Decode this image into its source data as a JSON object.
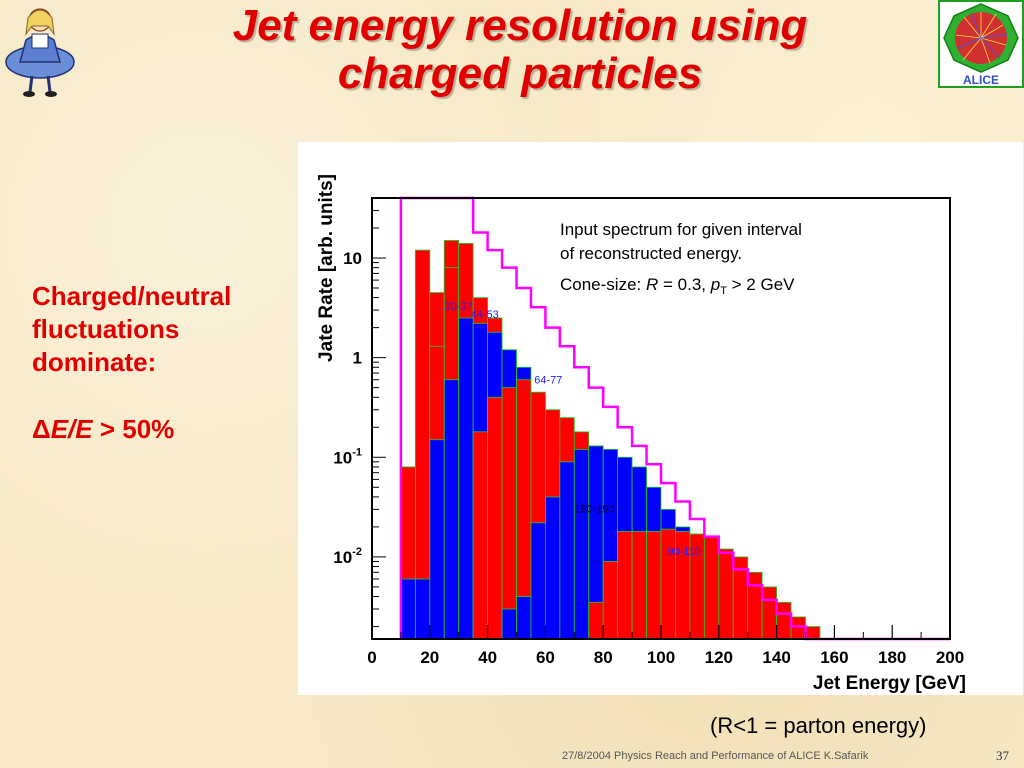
{
  "slide": {
    "title_line1": "Jet energy resolution using",
    "title_line2": "charged particles",
    "left_lines": [
      "Charged/neutral",
      "fluctuations",
      "dominate:"
    ],
    "resolution": {
      "delta": "Δ",
      "e_over_e": "E/E",
      "rest": " > 50%"
    },
    "note": "(R<1 = parton energy)",
    "footer": "27/8/2004 Physics Reach and Performance of ALICE  K.Safarik",
    "page_number": "37",
    "logo_right_text": "ALICE"
  },
  "chart_data": {
    "type": "bar",
    "xlabel": "Jet Energy  [GeV]",
    "ylabel": "Jate Rate  [arb. units]",
    "xlim": [
      0,
      200
    ],
    "ylim": [
      0.0015,
      40
    ],
    "log_y": true,
    "x_ticks": [
      "0",
      "20",
      "40",
      "60",
      "80",
      "100",
      "120",
      "140",
      "160",
      "180",
      "200"
    ],
    "y_ticks": [
      {
        "value": 10,
        "base": "10",
        "exp": ""
      },
      {
        "value": 1,
        "base": "1",
        "exp": ""
      },
      {
        "value": 0.1,
        "base": "10",
        "exp": "-1"
      },
      {
        "value": 0.01,
        "base": "10",
        "exp": "-2"
      }
    ],
    "annotation": {
      "line1": "Input spectrum for given interval",
      "line2": "of reconstructed energy.",
      "line3_prefix": "Cone-size: ",
      "r_symbol": "R",
      "r_value": " = 0.3, ",
      "p_symbol": "p",
      "p_sub": "T",
      "p_value": " > 2 GeV"
    },
    "colors": {
      "red": "#ff0000",
      "blue": "#0000ff",
      "magenta": "#ff00ff",
      "edge": "#22cc22"
    },
    "edges": [
      10,
      15,
      20,
      25,
      30,
      35,
      40,
      45,
      50,
      55,
      60,
      65,
      70,
      75,
      80,
      85,
      90,
      95,
      100,
      105,
      110,
      115,
      120,
      125,
      130,
      135,
      140,
      145,
      150,
      155,
      160,
      165,
      170,
      175,
      180,
      185,
      190,
      195,
      200
    ],
    "series": [
      {
        "name": "",
        "label": "30-37",
        "color": "#ff0000",
        "label_at": [
          30,
          3.0
        ],
        "values": [
          0.08,
          12,
          4.5,
          15,
          8,
          3,
          0.5,
          0.25,
          0.13,
          0.07,
          0.035,
          0.02,
          0.01,
          0.005,
          0.003,
          0.002,
          0.0015,
          0.0015,
          0.0015,
          0.0015,
          0.0015,
          0.0015,
          0.0015,
          0.0015,
          0.0015,
          0.0015,
          0.0015,
          0.0015,
          0.0015,
          0.0015,
          0.0015,
          0.0015,
          0.0015,
          0.0015,
          0.0015,
          0.0015,
          0.0015,
          0.0015
        ]
      },
      {
        "name": "",
        "label": "44-53",
        "color": "#ff0000",
        "label_at": [
          39,
          2.5
        ],
        "values": [
          0.0015,
          0.0015,
          1.3,
          8,
          14,
          4,
          2.5,
          1.1,
          0.55,
          0.35,
          0.2,
          0.12,
          0.07,
          0.04,
          0.025,
          0.015,
          0.009,
          0.005,
          0.003,
          0.002,
          0.0015,
          0.0015,
          0.0015,
          0.0015,
          0.0015,
          0.0015,
          0.0015,
          0.0015,
          0.0015,
          0.0015,
          0.0015,
          0.0015,
          0.0015,
          0.0015,
          0.0015,
          0.0015,
          0.0015,
          0.0015
        ]
      },
      {
        "name": "",
        "label": "",
        "color": "#0000ff",
        "values": [
          0.006,
          0.006,
          0.15,
          0.6,
          2.5,
          2.2,
          1.8,
          1.2,
          0.8,
          0.4,
          0.2,
          0.1,
          0.05,
          0.02,
          0.008,
          0.004,
          0.002,
          0.0015,
          0.0015,
          0.0015,
          0.0015,
          0.0015,
          0.0015,
          0.0015,
          0.0015,
          0.0015,
          0.0015,
          0.0015,
          0.0015,
          0.0015,
          0.0015,
          0.0015,
          0.0015,
          0.0015,
          0.0015,
          0.0015,
          0.0015,
          0.0015
        ]
      },
      {
        "name": "",
        "label": "64-77",
        "color": "#ff0000",
        "label_at": [
          61,
          0.55
        ],
        "values": [
          0.0015,
          0.0015,
          0.0015,
          0.0015,
          0.0015,
          0.18,
          0.4,
          0.5,
          0.6,
          0.45,
          0.3,
          0.25,
          0.18,
          0.1,
          0.06,
          0.03,
          0.015,
          0.008,
          0.004,
          0.002,
          0.0015,
          0.0015,
          0.0015,
          0.0015,
          0.0015,
          0.0015,
          0.0015,
          0.0015,
          0.0015,
          0.0015,
          0.0015,
          0.0015,
          0.0015,
          0.0015,
          0.0015,
          0.0015,
          0.0015,
          0.0015
        ]
      },
      {
        "name": "",
        "label": "",
        "color": "#0000ff",
        "values": [
          0.0015,
          0.0015,
          0.0015,
          0.0015,
          0.0015,
          0.0015,
          0.0015,
          0.003,
          0.004,
          0.022,
          0.04,
          0.09,
          0.12,
          0.13,
          0.12,
          0.1,
          0.08,
          0.05,
          0.03,
          0.02,
          0.015,
          0.01,
          0.006,
          0.004,
          0.003,
          0.002,
          0.0015,
          0.0015,
          0.0015,
          0.0015,
          0.0015,
          0.0015,
          0.0015,
          0.0015,
          0.0015,
          0.0015,
          0.0015,
          0.0015
        ]
      },
      {
        "name": "",
        "label": "160-190",
        "color": "#0000ff",
        "label_at": [
          77,
          0.028
        ],
        "values": [
          0.0015,
          0.0015,
          0.0015,
          0.0015,
          0.0015,
          0.0015,
          0.0015,
          0.0015,
          0.0015,
          0.0015,
          0.0015,
          0.0015,
          0.0015,
          0.0015,
          0.0015,
          0.0015,
          0.0015,
          0.0015,
          0.0015,
          0.0015,
          0.0015,
          0.0015,
          0.0015,
          0.0015,
          0.0015,
          0.0015,
          0.0015,
          0.0015,
          0.0015,
          0.0015,
          0.0015,
          0.0015,
          0.0015,
          0.0015,
          0.0015,
          0.0015,
          0.0015,
          0.0015
        ]
      },
      {
        "name": "",
        "label": "90-110",
        "color": "#ff0000",
        "label_at": [
          108,
          0.0105
        ],
        "values": [
          0.0015,
          0.0015,
          0.0015,
          0.0015,
          0.0015,
          0.0015,
          0.0015,
          0.0015,
          0.0015,
          0.0015,
          0.0015,
          0.0015,
          0.0015,
          0.0035,
          0.009,
          0.018,
          0.018,
          0.018,
          0.019,
          0.018,
          0.017,
          0.016,
          0.012,
          0.01,
          0.007,
          0.005,
          0.0035,
          0.0025,
          0.002,
          0.0015,
          0.0015,
          0.0015,
          0.0015,
          0.0015,
          0.0015,
          0.0015,
          0.0015,
          0.0015
        ]
      }
    ],
    "input_spectrum": {
      "name": "",
      "color": "#ff00ff",
      "values": [
        40,
        40,
        40,
        40,
        40,
        18,
        12,
        8,
        5,
        3.2,
        2,
        1.3,
        0.8,
        0.5,
        0.32,
        0.2,
        0.13,
        0.085,
        0.055,
        0.036,
        0.024,
        0.016,
        0.011,
        0.0075,
        0.0052,
        0.0037,
        0.0027,
        0.002,
        0.0015,
        0.0015,
        0.0015,
        0.0015,
        0.0015,
        0.0015,
        0.0015,
        0.0015,
        0.0015,
        0.0015
      ]
    }
  }
}
